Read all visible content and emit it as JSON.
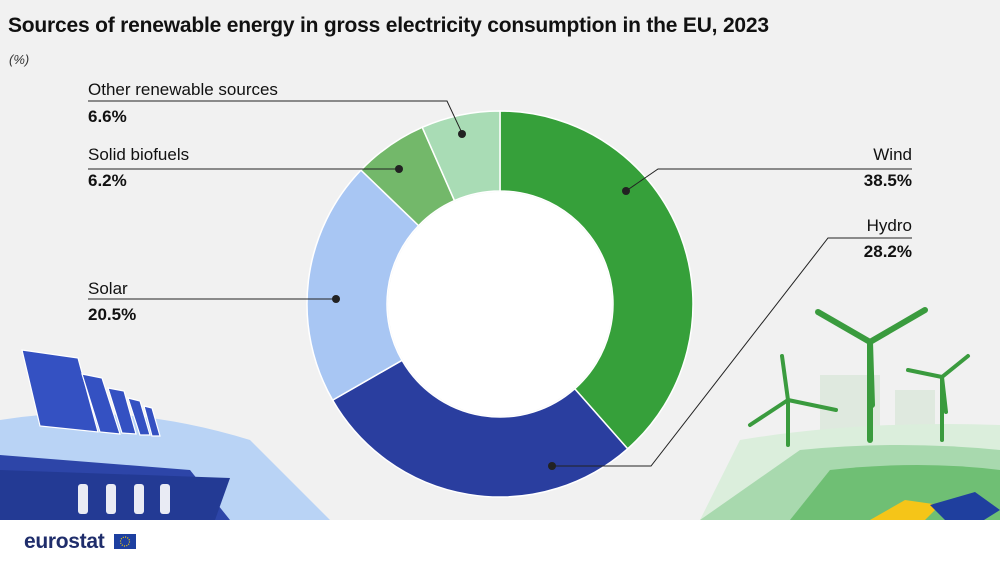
{
  "title": "Sources of renewable energy in gross electricity consumption in the EU, 2023",
  "unit": "(%)",
  "brand": "eurostat",
  "colors": {
    "wind": "#36a03a",
    "hydro": "#2a3e9f",
    "solar": "#a8c6f3",
    "solid_biofuels": "#73b86a",
    "other": "#a9dcb5"
  },
  "chart_data": {
    "type": "pie",
    "categories": [
      "Wind",
      "Hydro",
      "Solar",
      "Solid biofuels",
      "Other renewable sources"
    ],
    "values": [
      38.5,
      28.2,
      20.5,
      6.2,
      6.6
    ],
    "value_labels": [
      "38.5%",
      "28.2%",
      "20.5%",
      "6.2%",
      "6.6%"
    ]
  }
}
